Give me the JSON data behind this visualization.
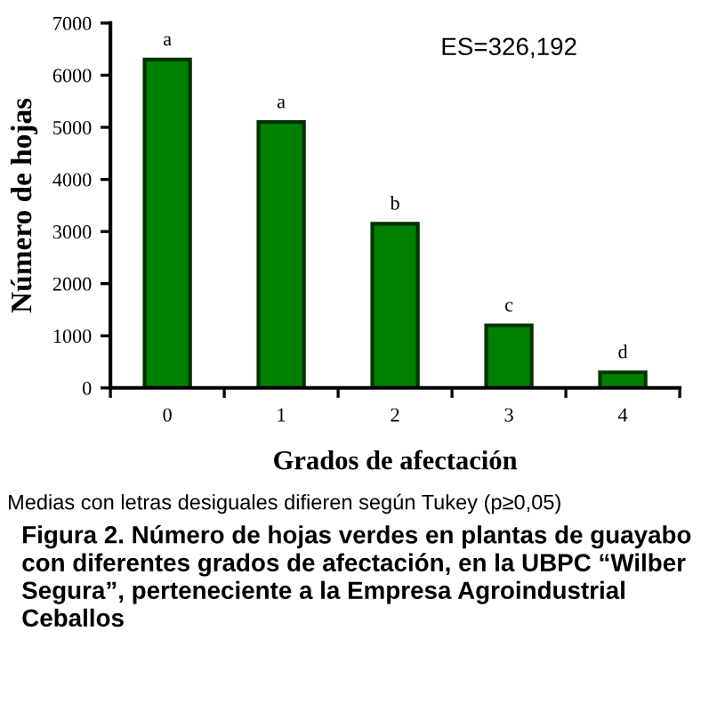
{
  "chart_data": {
    "type": "bar",
    "categories": [
      "0",
      "1",
      "2",
      "3",
      "4"
    ],
    "values": [
      6300,
      5100,
      3150,
      1200,
      300
    ],
    "color": "#008000",
    "xlabel": "Grados de afectación",
    "ylabel": "Número de hojas",
    "ylim": [
      0,
      7000
    ],
    "yticks": [
      0,
      1000,
      2000,
      3000,
      4000,
      5000,
      6000,
      7000
    ],
    "grid": false,
    "legend": false,
    "annotations": [
      {
        "text": "a",
        "x": "0",
        "y": 6300
      },
      {
        "text": "a",
        "x": "1",
        "y": 5100
      },
      {
        "text": "b",
        "x": "2",
        "y": 3150
      },
      {
        "text": "c",
        "x": "3",
        "y": 1200
      },
      {
        "text": "d",
        "x": "4",
        "y": 300
      },
      "ES=326,192",
      "Medias con letras desiguales difieren según Tukey (p≥0,05)",
      "Figura 2. Número de hojas verdes en plantas de guayabo con diferentes grados de afectación, en la UBPC “Wilber Segura”, perteneciente a la Empresa Agroindustrial Ceballos"
    ]
  }
}
